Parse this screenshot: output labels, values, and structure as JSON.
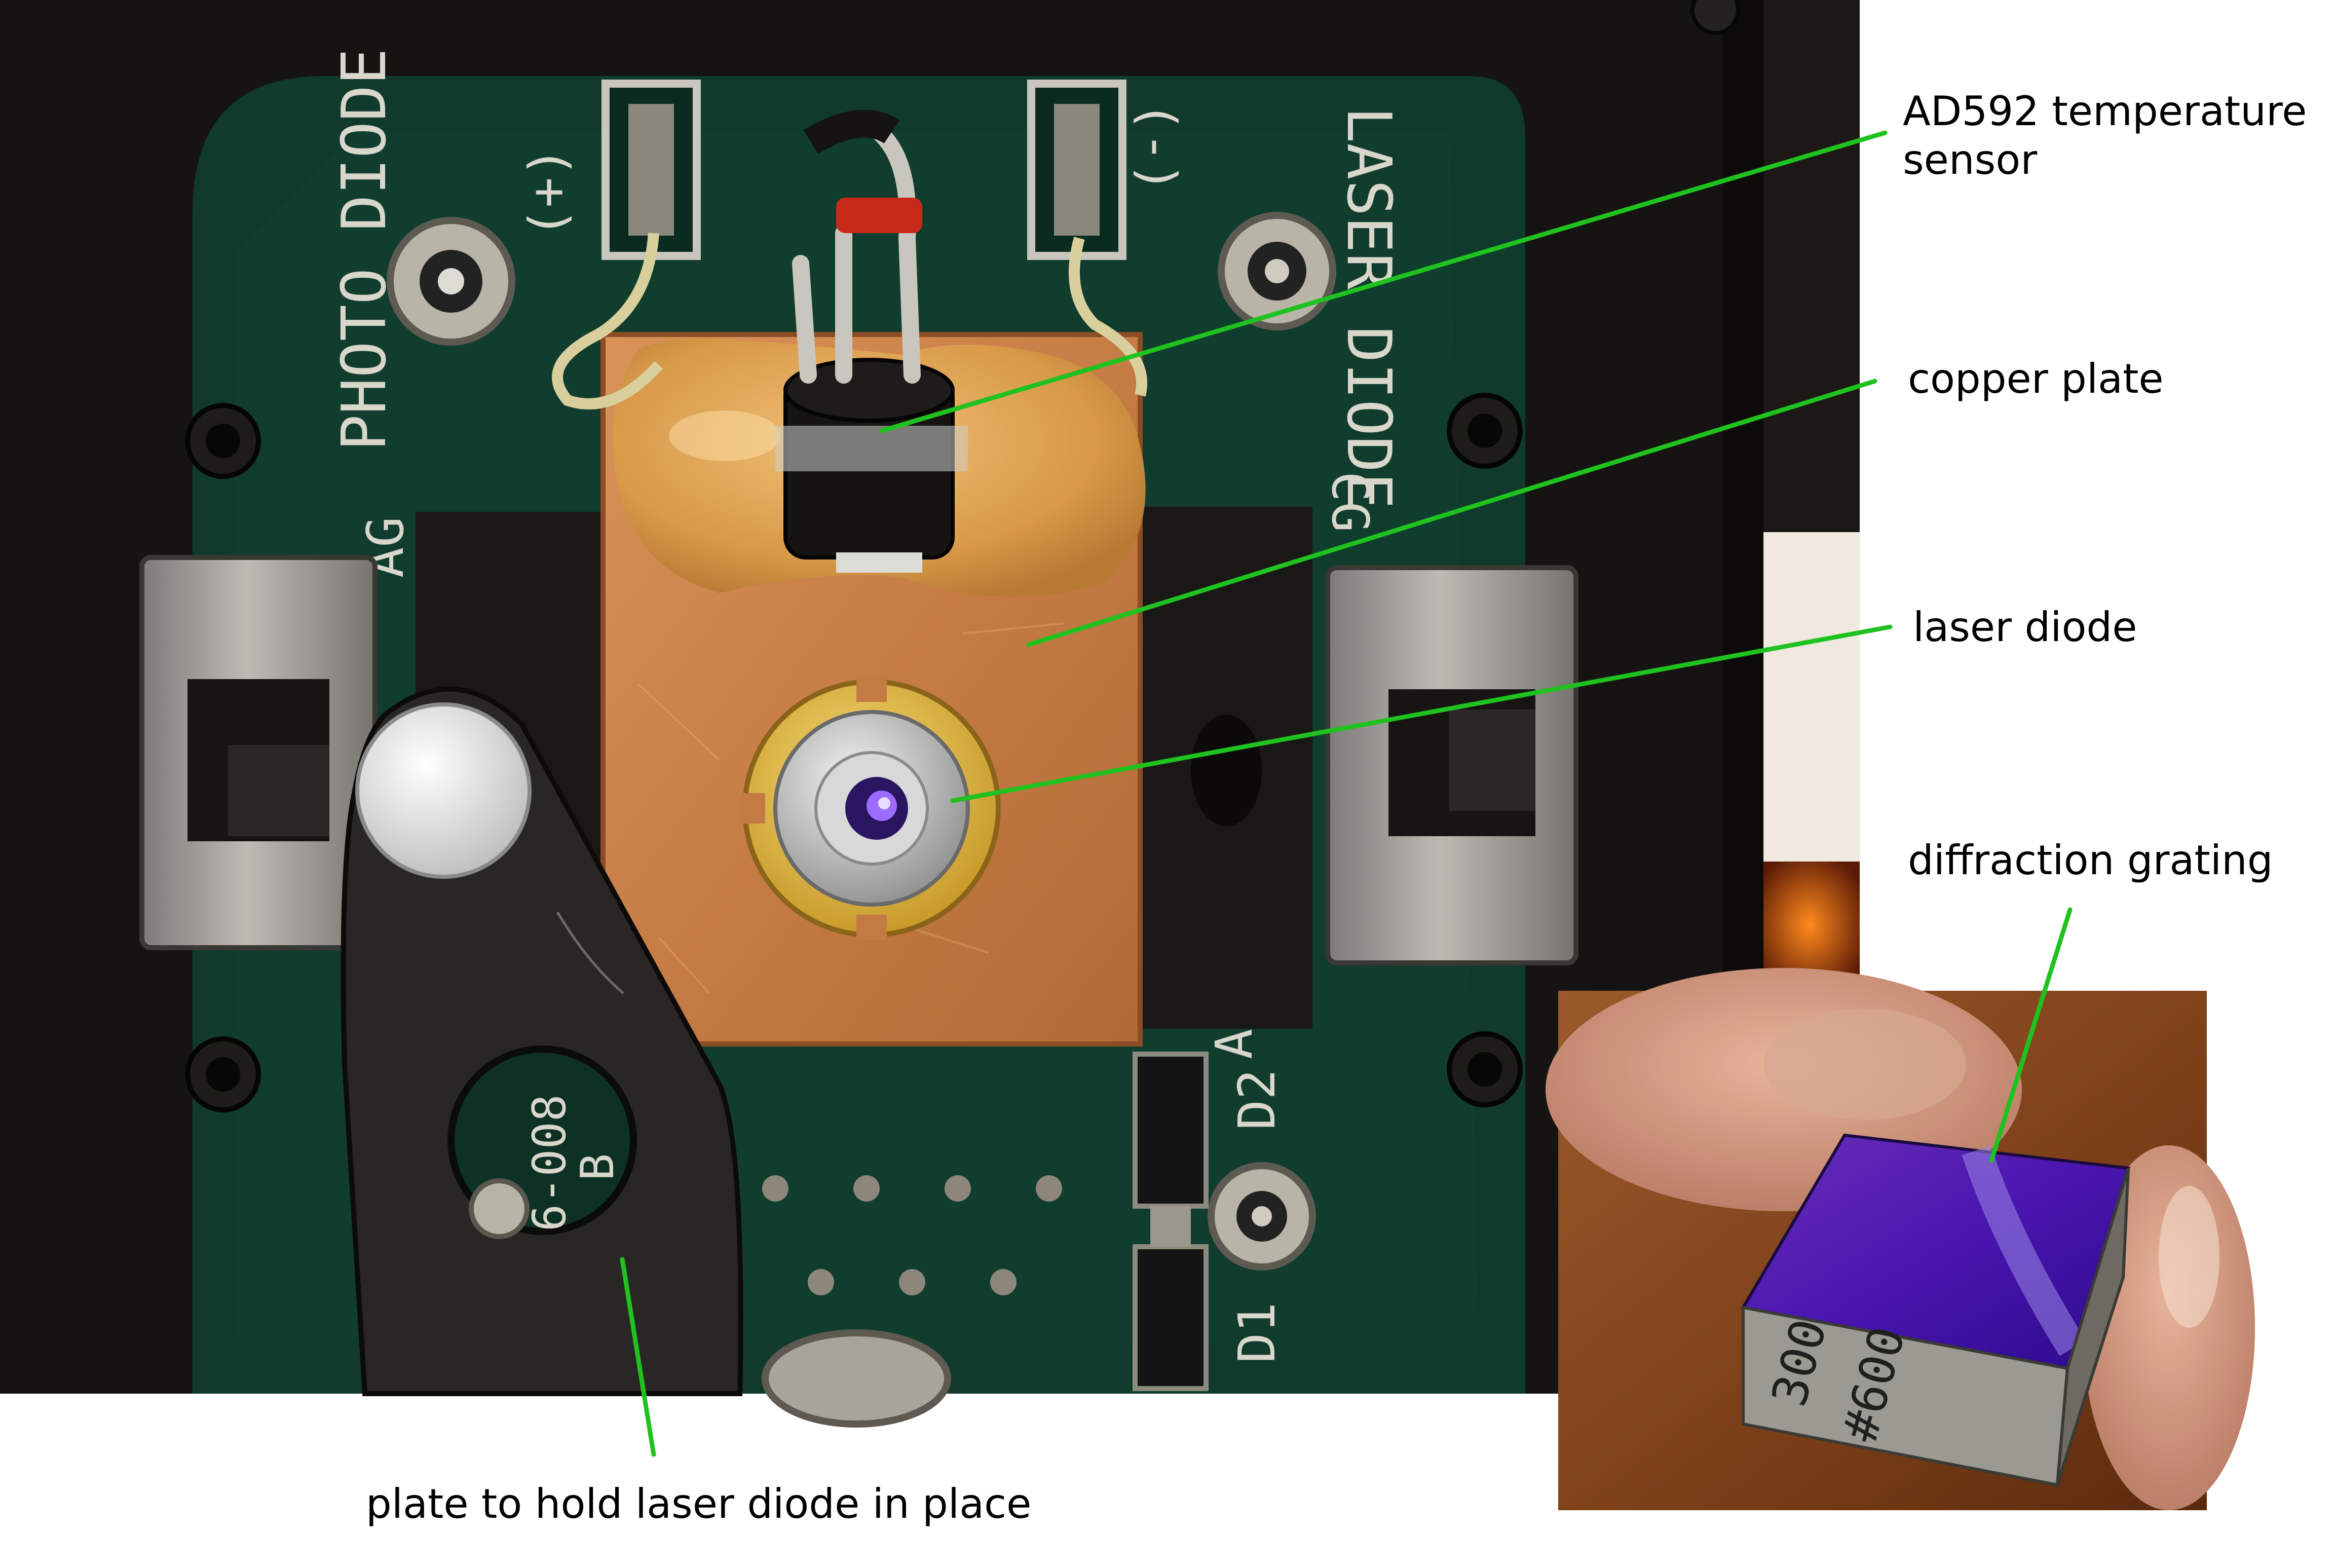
{
  "colors": {
    "leader_line": "#1fc21f",
    "background": "#ffffff",
    "copper": "#c97f48",
    "pcb": "#0f3a2c",
    "enclosure": "#151311"
  },
  "photo_text": {
    "photo_diode": "PHOTO DIODE",
    "laser_diode": "LASER DIODE",
    "plus": "(+)",
    "minus": "(-)",
    "d2": "D2",
    "d1": "D1",
    "ag": "AG",
    "cg": "CG",
    "part_no_top": "6-008",
    "part_no_bottom": "B",
    "grating_marking_1": "300",
    "grating_marking_2": "#600"
  },
  "labels": {
    "temp_sensor": {
      "line1": "AD592 temperature",
      "line2": "sensor"
    },
    "copper_plate": "copper plate",
    "laser_diode": "laser diode",
    "diffraction_grating": "diffraction grating",
    "holding_plate": "plate to hold laser diode in place"
  },
  "icons": {
    "laser_diode": "laser-diode-icon",
    "temp_sensor": "to92-sensor-icon",
    "grating": "diffraction-grating-icon"
  }
}
